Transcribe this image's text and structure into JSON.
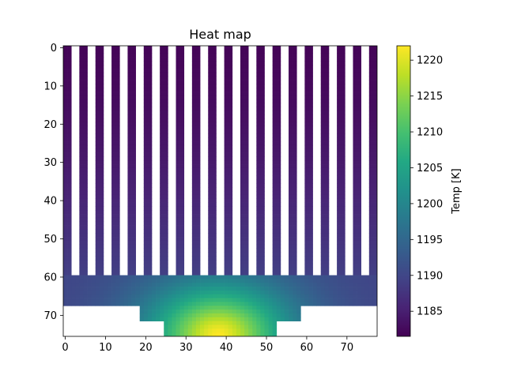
{
  "chart_data": {
    "type": "heatmap",
    "title": "Heat map",
    "xlabel": "",
    "ylabel": "",
    "x_ticks": [
      0,
      10,
      20,
      30,
      40,
      50,
      60,
      70
    ],
    "y_ticks": [
      0,
      10,
      20,
      30,
      40,
      50,
      60,
      70
    ],
    "xlim": [
      -0.5,
      77.5
    ],
    "ylim": [
      75.5,
      -0.5
    ],
    "y_inverted": true,
    "colormap": "viridis",
    "colorbar": {
      "label": "Temp [K]",
      "min": 1181.5,
      "max": 1222.0,
      "ticks": [
        1185,
        1190,
        1195,
        1200,
        1205,
        1210,
        1215,
        1220
      ]
    },
    "fins": {
      "count": 20,
      "pitch": 4,
      "width": 2,
      "rows": [
        0,
        59
      ]
    },
    "base_region": {
      "rows": [
        60,
        67
      ],
      "cols": [
        0,
        77
      ]
    },
    "step_region": {
      "rows": [
        68,
        71
      ],
      "cols": [
        19,
        58
      ]
    },
    "source_region": {
      "rows": [
        72,
        75
      ],
      "cols": [
        25,
        52
      ]
    },
    "hotspot": {
      "row": 75,
      "col": 38,
      "temp": 1222.0
    },
    "fin_tip_temp": 1182.0,
    "fin_root_temp": 1189.0
  }
}
